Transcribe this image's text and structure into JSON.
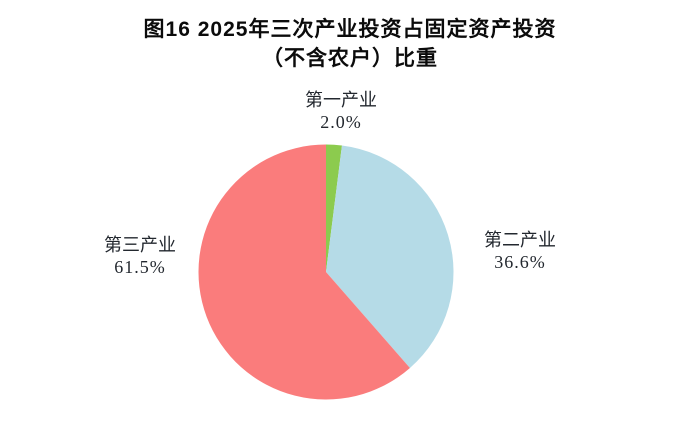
{
  "title": {
    "line1": "图16  2025年三次产业投资占固定资产投资",
    "line2": "（不含农户）比重"
  },
  "chart_data": {
    "type": "pie",
    "title": "图16 2025年三次产业投资占固定资产投资（不含农户）比重",
    "start_angle_deg": 0,
    "direction": "clockwise",
    "labels_position": "outside",
    "legend": "none",
    "background_color": "#ffffff",
    "label_text_color": "#23282f",
    "slices": [
      {
        "key": "primary",
        "name": "第一产业",
        "value": 2.0,
        "pct_label": "2.0%",
        "color": "#8CCB4E"
      },
      {
        "key": "secondary",
        "name": "第二产业",
        "value": 36.6,
        "pct_label": "36.6%",
        "color": "#B5DBE7"
      },
      {
        "key": "tertiary",
        "name": "第三产业",
        "value": 61.5,
        "pct_label": "61.5%",
        "color": "#FA7C7C"
      }
    ]
  }
}
